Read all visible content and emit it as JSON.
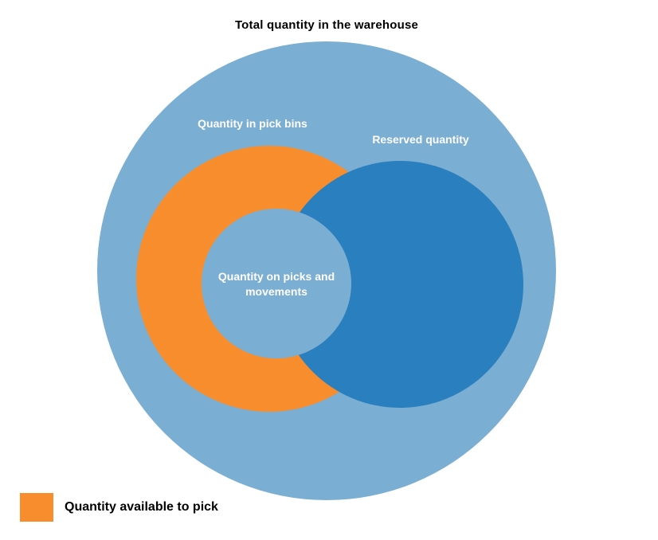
{
  "diagram": {
    "title": "Total quantity in the warehouse",
    "labels": {
      "pick_bins": "Quantity in pick bins",
      "reserved": "Reserved quantity",
      "picks_and_movements": "Quantity on picks and movements"
    },
    "structure_note": "Euler diagram: pick-bins (orange) and reserved (dark blue) circles sit inside the total-quantity circle; the small picks-and-movements circle lies over their overlap"
  },
  "colors": {
    "light_blue": "#7aaed3",
    "dark_blue": "#2a7fbe",
    "orange": "#f78d2d",
    "title_text": "#000000",
    "circle_label_text": "#ffffff",
    "background": "#ffffff"
  },
  "legend": {
    "label": "Quantity available to pick",
    "swatch_color": "#f78d2d"
  }
}
